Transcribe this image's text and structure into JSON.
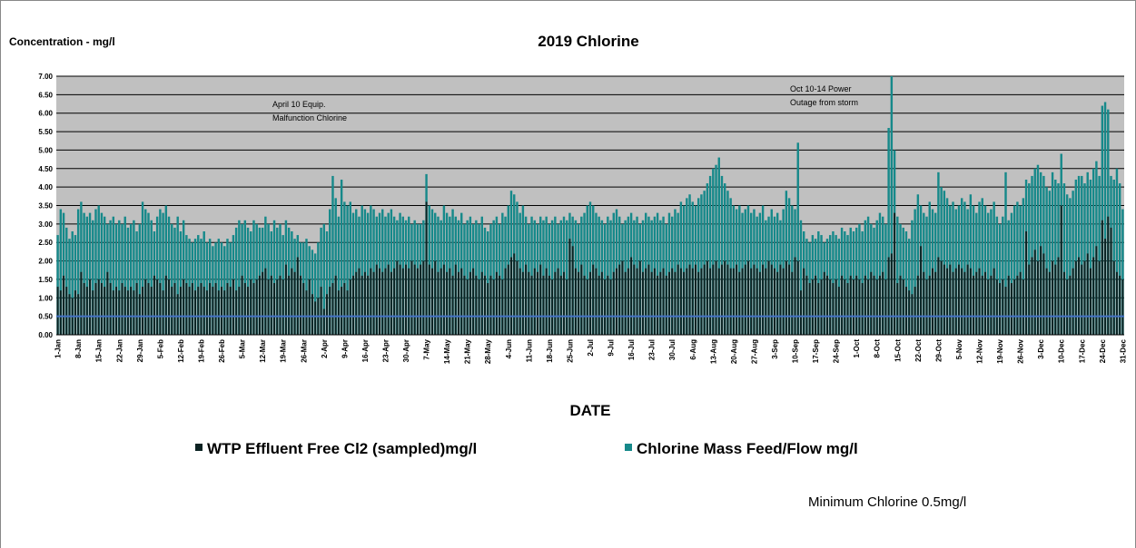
{
  "chart_data": {
    "type": "bar",
    "title": "2019 Chlorine",
    "y_label": "Concentration - mg/l",
    "x_label": "DATE",
    "annotations": [
      {
        "lines": [
          "April 10 Equip.",
          "Malfunction  Chlorine"
        ]
      },
      {
        "lines": [
          "Oct 10-14  Power",
          "Outage from storm"
        ]
      }
    ],
    "reference_line": {
      "value": 0.5,
      "label": "Minimum Chlorine 0.5mg/l",
      "color": "#4472c4"
    },
    "ylim": [
      0,
      7
    ],
    "yticks": [
      {
        "value": 0,
        "label": "0.00"
      },
      {
        "value": 0.5,
        "label": "0.50"
      },
      {
        "value": 1,
        "label": "1.00"
      },
      {
        "value": 1.5,
        "label": "1.50"
      },
      {
        "value": 2,
        "label": "2.00"
      },
      {
        "value": 2.5,
        "label": "2.50"
      },
      {
        "value": 3,
        "label": "3.00"
      },
      {
        "value": 3.5,
        "label": "3.50"
      },
      {
        "value": 4,
        "label": "4.00"
      },
      {
        "value": 4.5,
        "label": "4.50"
      },
      {
        "value": 5,
        "label": "5.00"
      },
      {
        "value": 5.5,
        "label": "5.50"
      },
      {
        "value": 6,
        "label": "6.00"
      },
      {
        "value": 6.5,
        "label": "6.50"
      },
      {
        "value": 7,
        "label": "7.00"
      }
    ],
    "grid": true,
    "categories": [
      "1-Jan",
      null,
      null,
      null,
      null,
      null,
      null,
      "8-Jan",
      null,
      null,
      null,
      null,
      null,
      null,
      "15-Jan",
      null,
      null,
      null,
      null,
      null,
      null,
      "22-Jan",
      null,
      null,
      null,
      null,
      null,
      null,
      "29-Jan",
      null,
      null,
      null,
      null,
      null,
      null,
      "5-Feb",
      null,
      null,
      null,
      null,
      null,
      null,
      "12-Feb",
      null,
      null,
      null,
      null,
      null,
      null,
      "19-Feb",
      null,
      null,
      null,
      null,
      null,
      null,
      "26-Feb",
      null,
      null,
      null,
      null,
      null,
      null,
      "5-Mar",
      null,
      null,
      null,
      null,
      null,
      null,
      "12-Mar",
      null,
      null,
      null,
      null,
      null,
      null,
      "19-Mar",
      null,
      null,
      null,
      null,
      null,
      null,
      "26-Mar",
      null,
      null,
      null,
      null,
      null,
      null,
      "2-Apr",
      null,
      null,
      null,
      null,
      null,
      null,
      "9-Apr",
      null,
      null,
      null,
      null,
      null,
      null,
      "16-Apr",
      null,
      null,
      null,
      null,
      null,
      null,
      "23-Apr",
      null,
      null,
      null,
      null,
      null,
      null,
      "30-Apr",
      null,
      null,
      null,
      null,
      null,
      null,
      "7-May",
      null,
      null,
      null,
      null,
      null,
      null,
      "14-May",
      null,
      null,
      null,
      null,
      null,
      null,
      "21-May",
      null,
      null,
      null,
      null,
      null,
      null,
      "28-May",
      null,
      null,
      null,
      null,
      null,
      null,
      "4-Jun",
      null,
      null,
      null,
      null,
      null,
      null,
      "11-Jun",
      null,
      null,
      null,
      null,
      null,
      null,
      "18-Jun",
      null,
      null,
      null,
      null,
      null,
      null,
      "25-Jun",
      null,
      null,
      null,
      null,
      null,
      null,
      "2-Jul",
      null,
      null,
      null,
      null,
      null,
      null,
      "9-Jul",
      null,
      null,
      null,
      null,
      null,
      null,
      "16-Jul",
      null,
      null,
      null,
      null,
      null,
      null,
      "23-Jul",
      null,
      null,
      null,
      null,
      null,
      null,
      "30-Jul",
      null,
      null,
      null,
      null,
      null,
      null,
      "6-Aug",
      null,
      null,
      null,
      null,
      null,
      null,
      "13-Aug",
      null,
      null,
      null,
      null,
      null,
      null,
      "20-Aug",
      null,
      null,
      null,
      null,
      null,
      null,
      "27-Aug",
      null,
      null,
      null,
      null,
      null,
      null,
      "3-Sep",
      null,
      null,
      null,
      null,
      null,
      null,
      "10-Sep",
      null,
      null,
      null,
      null,
      null,
      null,
      "17-Sep",
      null,
      null,
      null,
      null,
      null,
      null,
      "24-Sep",
      null,
      null,
      null,
      null,
      null,
      null,
      "1-Oct",
      null,
      null,
      null,
      null,
      null,
      null,
      "8-Oct",
      null,
      null,
      null,
      null,
      null,
      null,
      "15-Oct",
      null,
      null,
      null,
      null,
      null,
      null,
      "22-Oct",
      null,
      null,
      null,
      null,
      null,
      null,
      "29-Oct",
      null,
      null,
      null,
      null,
      null,
      null,
      "5-Nov",
      null,
      null,
      null,
      null,
      null,
      null,
      "12-Nov",
      null,
      null,
      null,
      null,
      null,
      null,
      "19-Nov",
      null,
      null,
      null,
      null,
      null,
      null,
      "26-Nov",
      null,
      null,
      null,
      null,
      null,
      null,
      "3-Dec",
      null,
      null,
      null,
      null,
      null,
      null,
      "10-Dec",
      null,
      null,
      null,
      null,
      null,
      null,
      "17-Dec",
      null,
      null,
      null,
      null,
      null,
      null,
      "24-Dec",
      null,
      null,
      null,
      null,
      null,
      null,
      "31-Dec"
    ],
    "series": [
      {
        "name": "Chlorine Mass Feed/Flow mg/l",
        "color": "#16898a",
        "values": [
          2.7,
          3.4,
          3.3,
          2.9,
          2.6,
          2.8,
          2.7,
          3.4,
          3.6,
          3.3,
          3.2,
          3.3,
          3.1,
          3.4,
          3.5,
          3.3,
          3.2,
          3.0,
          3.1,
          3.2,
          3.0,
          3.1,
          3.0,
          3.2,
          2.9,
          3.0,
          3.1,
          2.8,
          3.0,
          3.6,
          3.4,
          3.3,
          3.1,
          2.8,
          3.2,
          3.4,
          3.3,
          3.5,
          3.2,
          3.0,
          2.9,
          3.2,
          2.8,
          3.1,
          2.7,
          2.6,
          2.5,
          2.6,
          2.7,
          2.6,
          2.8,
          2.5,
          2.6,
          2.4,
          2.5,
          2.6,
          2.5,
          2.4,
          2.6,
          2.5,
          2.7,
          2.9,
          3.1,
          3.0,
          3.1,
          2.9,
          2.8,
          3.1,
          3.0,
          2.9,
          2.9,
          3.2,
          3.0,
          2.8,
          3.1,
          2.9,
          3.0,
          2.7,
          3.1,
          2.9,
          2.8,
          2.6,
          2.7,
          2.5,
          2.5,
          2.6,
          2.4,
          2.3,
          2.2,
          2.5,
          2.9,
          3.0,
          2.8,
          3.4,
          4.3,
          3.7,
          3.2,
          4.2,
          3.6,
          3.5,
          3.6,
          3.3,
          3.4,
          3.2,
          3.5,
          3.4,
          3.3,
          3.5,
          3.4,
          3.2,
          3.3,
          3.4,
          3.2,
          3.3,
          3.4,
          3.2,
          3.1,
          3.3,
          3.2,
          3.1,
          3.2,
          3.0,
          3.1,
          3.0,
          3.0,
          3.1,
          4.35,
          3.5,
          3.4,
          3.3,
          3.2,
          3.1,
          3.5,
          3.3,
          3.2,
          3.4,
          3.2,
          3.1,
          3.3,
          3.0,
          3.1,
          3.2,
          3.0,
          3.1,
          3.0,
          3.2,
          2.9,
          2.8,
          3.0,
          3.1,
          3.2,
          3.0,
          3.3,
          3.2,
          3.5,
          3.9,
          3.8,
          3.6,
          3.3,
          3.5,
          3.2,
          3.0,
          3.2,
          3.1,
          3.0,
          3.2,
          3.1,
          3.2,
          3.0,
          3.1,
          3.2,
          3.0,
          3.1,
          3.2,
          3.1,
          3.3,
          3.2,
          3.1,
          3.0,
          3.2,
          3.3,
          3.5,
          3.6,
          3.5,
          3.3,
          3.2,
          3.1,
          3.0,
          3.2,
          3.1,
          3.3,
          3.4,
          3.2,
          3.0,
          3.1,
          3.2,
          3.3,
          3.1,
          3.2,
          3.0,
          3.1,
          3.3,
          3.2,
          3.1,
          3.2,
          3.3,
          3.1,
          3.2,
          3.0,
          3.3,
          3.2,
          3.4,
          3.3,
          3.6,
          3.5,
          3.7,
          3.8,
          3.6,
          3.5,
          3.7,
          3.8,
          3.9,
          4.1,
          4.3,
          4.5,
          4.6,
          4.8,
          4.3,
          4.1,
          3.9,
          3.7,
          3.5,
          3.4,
          3.5,
          3.3,
          3.4,
          3.5,
          3.3,
          3.4,
          3.2,
          3.3,
          3.5,
          3.1,
          3.2,
          3.4,
          3.2,
          3.3,
          3.1,
          3.4,
          3.9,
          3.7,
          3.5,
          3.4,
          5.2,
          3.1,
          2.8,
          2.6,
          2.5,
          2.7,
          2.6,
          2.8,
          2.7,
          2.5,
          2.6,
          2.7,
          2.8,
          2.7,
          2.6,
          2.9,
          2.8,
          2.7,
          2.9,
          2.8,
          2.9,
          3.0,
          2.8,
          3.1,
          3.2,
          3.0,
          2.9,
          3.1,
          3.3,
          3.2,
          3.0,
          5.6,
          7.0,
          5.0,
          3.2,
          3.0,
          2.9,
          2.8,
          2.6,
          3.1,
          3.4,
          3.8,
          3.5,
          3.3,
          3.2,
          3.6,
          3.4,
          3.3,
          4.4,
          4.0,
          3.9,
          3.7,
          3.5,
          3.6,
          3.4,
          3.5,
          3.7,
          3.6,
          3.4,
          3.8,
          3.5,
          3.3,
          3.6,
          3.7,
          3.5,
          3.3,
          3.4,
          3.6,
          3.2,
          3.0,
          3.2,
          4.4,
          3.1,
          3.3,
          3.5,
          3.6,
          3.5,
          3.7,
          4.2,
          4.1,
          4.3,
          4.5,
          4.6,
          4.4,
          4.3,
          4.0,
          3.9,
          4.4,
          4.2,
          4.1,
          4.9,
          4.1,
          3.8,
          3.7,
          3.9,
          4.2,
          4.3,
          4.3,
          4.1,
          4.4,
          4.2,
          4.5,
          4.7,
          4.3,
          6.2,
          6.3,
          6.1,
          4.3,
          4.2,
          4.5,
          4.1,
          3.4
        ]
      },
      {
        "name": "WTP Effluent Free Cl2 (sampled)mg/l",
        "color": "#0c2222",
        "values": [
          1.3,
          1.2,
          1.6,
          1.3,
          1.1,
          1.0,
          1.2,
          1.1,
          1.7,
          1.4,
          1.3,
          1.5,
          1.2,
          1.4,
          1.5,
          1.4,
          1.3,
          1.7,
          1.4,
          1.2,
          1.3,
          1.2,
          1.4,
          1.3,
          1.2,
          1.3,
          1.2,
          1.4,
          1.1,
          1.3,
          1.5,
          1.4,
          1.3,
          1.6,
          1.5,
          1.4,
          1.2,
          1.6,
          1.5,
          1.3,
          1.4,
          1.1,
          1.3,
          1.5,
          1.4,
          1.3,
          1.4,
          1.2,
          1.3,
          1.4,
          1.3,
          1.2,
          1.4,
          1.3,
          1.4,
          1.2,
          1.3,
          1.2,
          1.4,
          1.3,
          1.5,
          1.2,
          1.3,
          1.6,
          1.4,
          1.3,
          1.5,
          1.4,
          1.5,
          1.6,
          1.7,
          1.8,
          1.5,
          1.6,
          1.4,
          1.5,
          1.6,
          1.5,
          1.9,
          1.6,
          1.8,
          1.7,
          2.1,
          1.6,
          1.4,
          1.2,
          1.5,
          1.1,
          0.9,
          1.0,
          1.3,
          0.7,
          1.1,
          1.3,
          1.4,
          1.6,
          1.2,
          1.3,
          1.4,
          1.2,
          1.5,
          1.6,
          1.7,
          1.8,
          1.6,
          1.7,
          1.6,
          1.8,
          1.7,
          1.9,
          1.8,
          1.7,
          1.8,
          1.9,
          1.7,
          1.8,
          2.0,
          1.9,
          1.8,
          1.9,
          1.8,
          2.0,
          1.9,
          1.8,
          1.9,
          2.0,
          3.6,
          1.9,
          1.8,
          2.0,
          1.7,
          1.8,
          1.9,
          1.7,
          1.8,
          1.6,
          1.9,
          1.7,
          1.8,
          1.6,
          1.5,
          1.7,
          1.8,
          1.6,
          1.5,
          1.7,
          1.6,
          1.4,
          1.6,
          1.5,
          1.7,
          1.6,
          1.5,
          1.8,
          1.9,
          2.1,
          2.2,
          2.0,
          1.8,
          1.7,
          1.9,
          1.7,
          1.6,
          1.8,
          1.7,
          1.9,
          1.6,
          1.8,
          1.6,
          1.5,
          1.7,
          1.8,
          1.6,
          1.7,
          1.5,
          2.6,
          2.4,
          1.8,
          1.7,
          1.9,
          1.6,
          1.5,
          1.7,
          1.9,
          1.8,
          1.6,
          1.7,
          1.5,
          1.6,
          1.5,
          1.7,
          1.8,
          1.9,
          2.0,
          1.7,
          1.8,
          2.1,
          1.9,
          1.8,
          2.0,
          1.7,
          1.8,
          1.9,
          1.7,
          1.8,
          1.6,
          1.7,
          1.8,
          1.6,
          1.7,
          1.8,
          1.7,
          1.9,
          1.8,
          1.7,
          1.8,
          1.9,
          1.8,
          1.9,
          1.7,
          1.8,
          1.9,
          2.0,
          1.8,
          1.9,
          2.0,
          1.8,
          1.9,
          2.0,
          1.9,
          1.8,
          1.8,
          1.9,
          1.7,
          1.8,
          1.9,
          2.0,
          1.8,
          1.9,
          1.8,
          1.7,
          1.9,
          1.8,
          2.0,
          1.9,
          1.8,
          1.7,
          1.9,
          1.8,
          2.0,
          1.9,
          1.7,
          2.1,
          2.0,
          1.2,
          1.8,
          1.6,
          1.4,
          1.5,
          1.6,
          1.4,
          1.5,
          1.7,
          1.6,
          1.5,
          1.4,
          1.5,
          1.3,
          1.6,
          1.5,
          1.4,
          1.6,
          1.5,
          1.6,
          1.5,
          1.4,
          1.6,
          1.5,
          1.7,
          1.6,
          1.5,
          1.6,
          1.7,
          1.5,
          2.1,
          2.2,
          3.3,
          1.4,
          1.6,
          1.5,
          1.3,
          1.2,
          1.1,
          1.3,
          1.6,
          2.4,
          1.7,
          1.5,
          1.6,
          1.8,
          1.7,
          2.1,
          2.0,
          1.9,
          1.8,
          1.9,
          1.7,
          1.8,
          1.9,
          1.8,
          1.7,
          1.9,
          1.8,
          1.6,
          1.7,
          1.8,
          1.6,
          1.7,
          1.5,
          1.6,
          1.8,
          1.5,
          1.4,
          1.5,
          1.3,
          1.6,
          1.4,
          1.5,
          1.6,
          1.7,
          1.5,
          2.8,
          1.9,
          2.1,
          2.3,
          2.0,
          2.4,
          2.2,
          1.8,
          1.7,
          2.0,
          1.9,
          2.1,
          3.5,
          1.7,
          1.5,
          1.6,
          1.8,
          2.0,
          2.1,
          1.9,
          2.0,
          2.2,
          1.8,
          2.1,
          2.4,
          2.0,
          3.1,
          2.6,
          3.2,
          2.9,
          2.0,
          1.7,
          1.6,
          1.5
        ]
      }
    ]
  }
}
